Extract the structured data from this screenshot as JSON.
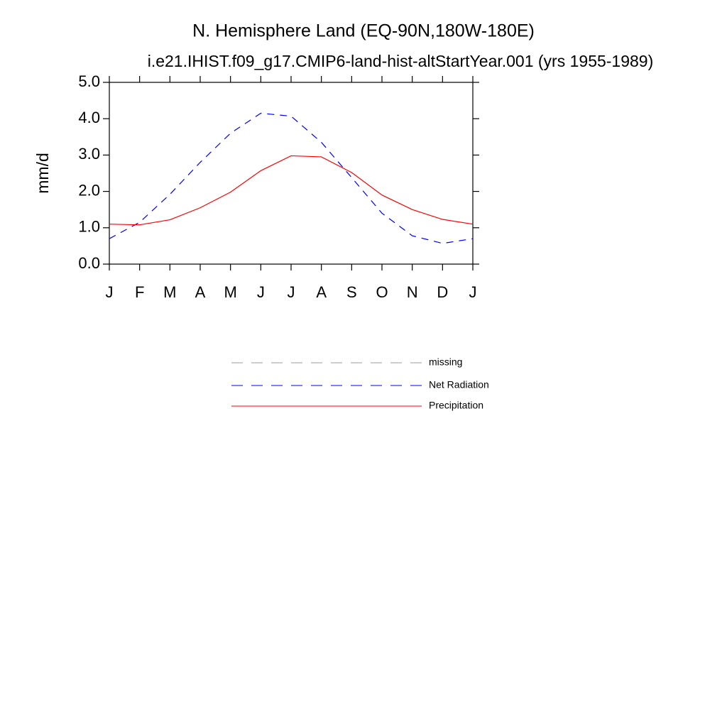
{
  "chart_data": {
    "type": "line",
    "title": "N. Hemisphere Land (EQ-90N,180W-180E)",
    "subtitle": "i.e21.IHIST.f09_g17.CMIP6-land-hist-altStartYear.001 (yrs 1955-1989)",
    "y_label": "mm/d",
    "categories": [
      "J",
      "F",
      "M",
      "A",
      "M",
      "J",
      "J",
      "A",
      "S",
      "O",
      "N",
      "D",
      "J"
    ],
    "ylim": [
      0,
      5
    ],
    "yticks": [
      {
        "value": 0,
        "label": "0.0"
      },
      {
        "value": 1,
        "label": "1.0"
      },
      {
        "value": 2,
        "label": "2.0"
      },
      {
        "value": 3,
        "label": "3.0"
      },
      {
        "value": 4,
        "label": "4.0"
      },
      {
        "value": 5,
        "label": "5.0"
      }
    ],
    "series": [
      {
        "name": "missing",
        "color": "#999999",
        "dashed": true,
        "values": [
          null,
          null,
          null,
          null,
          null,
          null,
          null,
          null,
          null,
          null,
          null,
          null,
          null
        ]
      },
      {
        "name": "Net Radiation",
        "color": "#0000ff",
        "dashed": true,
        "values": [
          0.7,
          1.15,
          1.92,
          2.8,
          3.6,
          4.15,
          4.07,
          3.35,
          2.38,
          1.4,
          0.78,
          0.57,
          0.7
        ]
      },
      {
        "name": "Precipitation",
        "color": "#ff0000",
        "dashed": false,
        "values": [
          1.1,
          1.08,
          1.22,
          1.55,
          1.98,
          2.57,
          2.98,
          2.95,
          2.52,
          1.9,
          1.5,
          1.23,
          1.1
        ]
      }
    ]
  }
}
